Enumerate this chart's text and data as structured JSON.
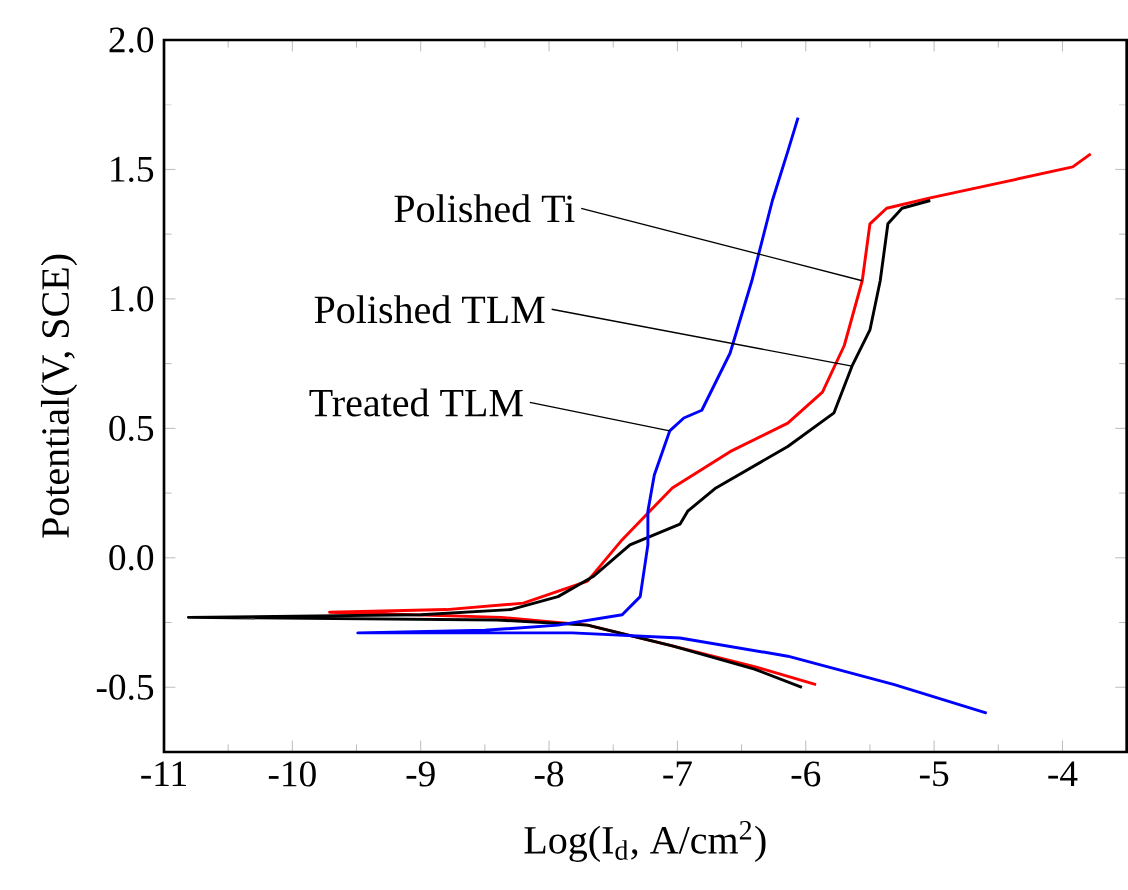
{
  "chart_data": {
    "type": "line",
    "xlabel": "Log(I$_{d}$, A/cm$^{2}$)",
    "ylabel": "Potential(V, SCE)",
    "xlim": [
      -11,
      -3.5
    ],
    "ylim": [
      -0.75,
      2.0
    ],
    "xticks": [
      -11,
      -10,
      -9,
      -8,
      -7,
      -6,
      -5,
      -4
    ],
    "yticks": [
      {
        "value": -0.5,
        "label": "-0.5"
      },
      {
        "value": 0,
        "label": "0.0"
      },
      {
        "value": 0.5,
        "label": "0.5"
      },
      {
        "value": 1.0,
        "label": "1.0"
      },
      {
        "value": 1.5,
        "label": "1.5"
      },
      {
        "value": 2.0,
        "label": "2.0"
      }
    ],
    "annotations": [
      {
        "text": "Polished Ti",
        "x": -5.56,
        "y": 1.07
      },
      {
        "text": "Polished TLM",
        "x": -5.64,
        "y": 0.74
      },
      {
        "text": "Treated TLM",
        "x": -7.06,
        "y": 0.49
      }
    ],
    "marker": "none",
    "line_style": "solid",
    "series": [
      {
        "color": "#ff0000",
        "x": [
          -5.92,
          -6.4,
          -7.04,
          -7.7,
          -8.37,
          -9.71,
          -8.8,
          -8.2,
          -7.7,
          -7.43,
          -7.04,
          -6.59,
          -6.14,
          -5.87,
          -5.7,
          -5.56,
          -5.5,
          -5.37,
          -5.03,
          -4.47,
          -3.92,
          -3.78
        ],
        "values": [
          -0.49,
          -0.42,
          -0.34,
          -0.26,
          -0.23,
          -0.21,
          -0.2,
          -0.175,
          -0.09,
          0.07,
          0.27,
          0.41,
          0.52,
          0.64,
          0.82,
          1.07,
          1.29,
          1.35,
          1.39,
          1.45,
          1.51,
          1.56
        ]
      },
      {
        "color": "#000000",
        "x": [
          -6.03,
          -6.4,
          -7.04,
          -7.7,
          -8.4,
          -10.81,
          -9.0,
          -8.3,
          -7.93,
          -7.65,
          -7.37,
          -6.98,
          -6.92,
          -6.7,
          -6.14,
          -5.78,
          -5.64,
          -5.5,
          -5.42,
          -5.36,
          -5.25,
          -5.03
        ],
        "values": [
          -0.5,
          -0.43,
          -0.34,
          -0.26,
          -0.24,
          -0.23,
          -0.22,
          -0.2,
          -0.15,
          -0.07,
          0.05,
          0.13,
          0.18,
          0.27,
          0.43,
          0.56,
          0.74,
          0.88,
          1.07,
          1.29,
          1.35,
          1.38
        ]
      },
      {
        "color": "#0000ff",
        "x": [
          -4.59,
          -5.31,
          -6.14,
          -6.98,
          -7.82,
          -9.49,
          -8.5,
          -7.93,
          -7.43,
          -7.29,
          -7.23,
          -7.23,
          -7.18,
          -7.06,
          -6.95,
          -6.81,
          -6.7,
          -6.59,
          -6.42,
          -6.26,
          -6.14,
          -6.06
        ],
        "values": [
          -0.6,
          -0.49,
          -0.38,
          -0.31,
          -0.29,
          -0.29,
          -0.28,
          -0.26,
          -0.22,
          -0.15,
          0.05,
          0.18,
          0.32,
          0.49,
          0.54,
          0.57,
          0.68,
          0.79,
          1.07,
          1.38,
          1.57,
          1.7
        ]
      }
    ]
  }
}
